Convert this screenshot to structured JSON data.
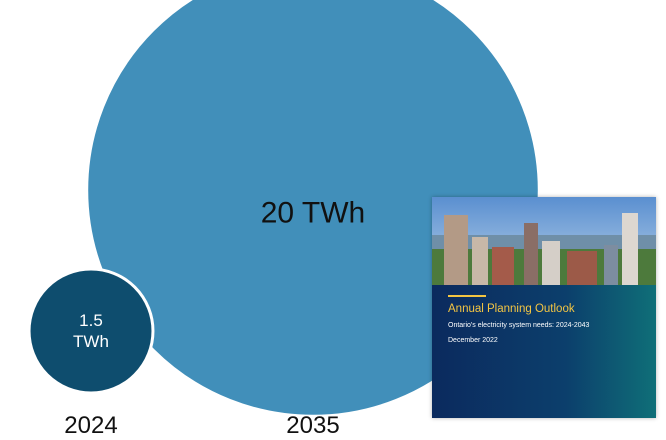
{
  "chart_data": {
    "type": "bubble",
    "categories": [
      "2024",
      "2035"
    ],
    "values": [
      1.5,
      20
    ],
    "value_labels": [
      "1.5 TWh",
      "20 TWh"
    ],
    "colors": [
      "#0e4d6e",
      "#418fba"
    ]
  },
  "report_cover": {
    "title": "Annual Planning Outlook",
    "subtitle": "Ontario's electricity system needs: 2024-2043",
    "date": "December 2022"
  }
}
